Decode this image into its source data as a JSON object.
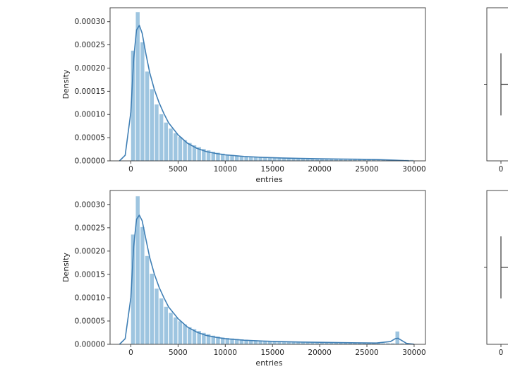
{
  "chart_data": [
    {
      "type": "histogram+kde",
      "xlabel": "entries",
      "ylabel": "Density",
      "xlim": [
        -2200,
        31200
      ],
      "ylim": [
        0,
        0.00033
      ],
      "xticks": [
        0,
        5000,
        10000,
        15000,
        20000,
        25000,
        30000
      ],
      "yticks": [
        0.0,
        5e-05,
        0.0001,
        0.00015,
        0.0002,
        0.00025,
        0.0003
      ],
      "ytick_labels": [
        "0.00000",
        "0.00005",
        "0.00010",
        "0.00015",
        "0.00020",
        "0.00025",
        "0.00030"
      ],
      "bin_width": 500,
      "bin_start": 0,
      "bin_heights": [
        0.000238,
        0.000321,
        0.000256,
        0.000193,
        0.000155,
        0.000122,
        0.000101,
        8.3e-05,
        7e-05,
        6e-05,
        5.2e-05,
        4.5e-05,
        3.9e-05,
        3.4e-05,
        3e-05,
        2.6e-05,
        2.3e-05,
        2e-05,
        1.8e-05,
        1.6e-05,
        1.4e-05,
        1.3e-05,
        1.2e-05,
        1.1e-05,
        1e-05,
        9.5e-06,
        9e-06,
        8.5e-06,
        8e-06,
        7.5e-06,
        7e-06,
        6.5e-06,
        6e-06,
        6e-06,
        5.5e-06,
        5e-06,
        5e-06,
        4.5e-06,
        4.5e-06,
        4e-06,
        4e-06,
        4e-06,
        3.5e-06,
        3.5e-06,
        3.5e-06,
        3e-06,
        3e-06,
        3e-06,
        3e-06,
        2.8e-06,
        2.8e-06,
        2.7e-06,
        2.7e-06,
        2.6e-06,
        2.6e-06,
        2.5e-06,
        2.5e-06,
        2.4e-06,
        2.4e-06,
        2.3e-06
      ],
      "kde": {
        "x": [
          -1200,
          -600,
          0,
          300,
          600,
          900,
          1200,
          1600,
          2000,
          2500,
          3000,
          3500,
          4000,
          5000,
          6000,
          7000,
          8000,
          9000,
          10000,
          12000,
          14000,
          16000,
          18000,
          20000,
          22000,
          24000,
          26000,
          28000,
          29500
        ],
        "y": [
          0.0,
          1.2e-05,
          0.000105,
          0.00022,
          0.000282,
          0.000292,
          0.000275,
          0.00023,
          0.00019,
          0.000153,
          0.000125,
          0.000102,
          8.2e-05,
          5.6e-05,
          3.8e-05,
          2.7e-05,
          2e-05,
          1.6e-05,
          1.3e-05,
          9.5e-06,
          7.5e-06,
          6.2e-06,
          5.2e-06,
          4.5e-06,
          4e-06,
          3.5e-06,
          3e-06,
          1.5e-06,
          0.0
        ]
      }
    },
    {
      "type": "boxplot",
      "xticks": [
        0
      ]
    },
    {
      "type": "histogram+kde",
      "xlabel": "entries",
      "ylabel": "Density",
      "xlim": [
        -2200,
        31200
      ],
      "ylim": [
        0,
        0.00033
      ],
      "xticks": [
        0,
        5000,
        10000,
        15000,
        20000,
        25000,
        30000
      ],
      "yticks": [
        0.0,
        5e-05,
        0.0001,
        0.00015,
        0.0002,
        0.00025,
        0.0003
      ],
      "ytick_labels": [
        "0.00000",
        "0.00005",
        "0.00010",
        "0.00015",
        "0.00020",
        "0.00025",
        "0.00030"
      ],
      "bin_width": 500,
      "bin_start": 0,
      "bin_heights": [
        0.000236,
        0.000318,
        0.000252,
        0.00019,
        0.000152,
        0.00012,
        9.9e-05,
        8.1e-05,
        6.8e-05,
        5.8e-05,
        5e-05,
        4.3e-05,
        3.7e-05,
        3.3e-05,
        2.9e-05,
        2.5e-05,
        2.2e-05,
        1.9e-05,
        1.7e-05,
        1.5e-05,
        1.4e-05,
        1.3e-05,
        1.2e-05,
        1.1e-05,
        1e-05,
        9.5e-06,
        9e-06,
        8.5e-06,
        8e-06,
        7.5e-06,
        7e-06,
        6.5e-06,
        6e-06,
        6e-06,
        5.5e-06,
        5e-06,
        5e-06,
        4.5e-06,
        4.5e-06,
        4e-06,
        4e-06,
        4e-06,
        3.5e-06,
        3.5e-06,
        3.5e-06,
        3e-06,
        3e-06,
        3e-06,
        3e-06,
        2.8e-06,
        2.8e-06,
        2.7e-06,
        2.7e-06,
        2.6e-06,
        2.6e-06,
        2.5e-06,
        2.8e-05,
        2.4e-06,
        2.4e-06,
        2.3e-06
      ],
      "kde": {
        "x": [
          -1200,
          -600,
          0,
          300,
          600,
          900,
          1200,
          1600,
          2000,
          2500,
          3000,
          3500,
          4000,
          5000,
          6000,
          7000,
          8000,
          9000,
          10000,
          12000,
          14000,
          16000,
          18000,
          20000,
          22000,
          24000,
          26000,
          27500,
          28000,
          28300,
          28700,
          29200,
          30000
        ],
        "y": [
          0.0,
          1.2e-05,
          0.0001,
          0.00021,
          0.000268,
          0.000277,
          0.000265,
          0.000225,
          0.000186,
          0.00015,
          0.000122,
          0.0001,
          8e-05,
          5.5e-05,
          3.7e-05,
          2.6e-05,
          1.9e-05,
          1.5e-05,
          1.2e-05,
          8.8e-06,
          7e-06,
          5.8e-06,
          4.8e-06,
          4.2e-06,
          3.7e-06,
          3.2e-06,
          2.8e-06,
          6e-06,
          1.2e-05,
          1.3e-05,
          8e-06,
          2e-06,
          0.0
        ]
      }
    },
    {
      "type": "boxplot",
      "xticks": [
        0
      ]
    }
  ],
  "colors": {
    "bar_fill": "#9ec5e0",
    "kde_line": "#3f7fb5",
    "axes": "#333333",
    "box_line": "#444444"
  }
}
